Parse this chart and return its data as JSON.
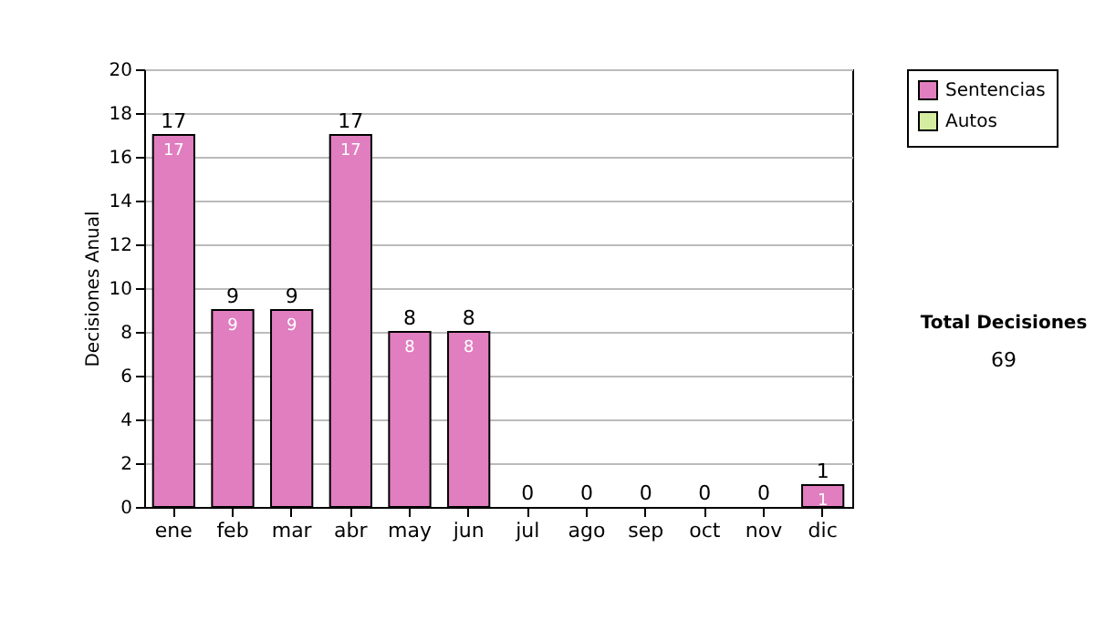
{
  "chart_data": {
    "type": "bar",
    "stacked": true,
    "ylabel": "Decisiones Anual",
    "categories": [
      "ene",
      "feb",
      "mar",
      "abr",
      "may",
      "jun",
      "jul",
      "ago",
      "sep",
      "oct",
      "nov",
      "dic"
    ],
    "series": [
      {
        "name": "Sentencias",
        "color": "#e07ec0",
        "values": [
          17,
          9,
          9,
          17,
          8,
          8,
          0,
          0,
          0,
          0,
          0,
          1
        ],
        "value_labels": [
          "17",
          "9",
          "9",
          "17",
          "8",
          "8",
          null,
          null,
          null,
          null,
          null,
          "1"
        ]
      },
      {
        "name": "Autos",
        "color": "#d4eda0",
        "values": [
          0,
          0,
          0,
          0,
          0,
          0,
          0,
          0,
          0,
          0,
          0,
          0
        ]
      }
    ],
    "totals": [
      "17",
      "9",
      "9",
      "17",
      "8",
      "8",
      "0",
      "0",
      "0",
      "0",
      "0",
      "1"
    ],
    "ylim": [
      0,
      20
    ],
    "yticks": [
      0,
      2,
      4,
      6,
      8,
      10,
      12,
      14,
      16,
      18,
      20
    ],
    "grid": "y",
    "legend": "right",
    "annotations": [
      "Total Decisiones",
      "69"
    ]
  }
}
